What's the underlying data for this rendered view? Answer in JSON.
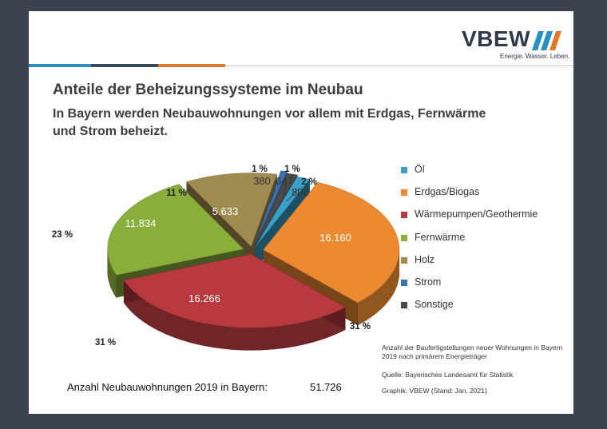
{
  "logo": {
    "text": "VBEW",
    "tagline": "Energie. Wasser. Leben."
  },
  "title": "Anteile der Beheizungssysteme im Neubau",
  "subtitle": "In Bayern werden Neubauwohnungen vor allem mit Erdgas, Fernwärme und Strom beheizt.",
  "colors": {
    "stripes": [
      "#2a8fc0",
      "#3a4a5a",
      "#e07a2a"
    ]
  },
  "chart_data": {
    "type": "pie",
    "style": "3d-exploded",
    "categories": [
      "Öl",
      "Erdgas/Biogas",
      "Wärmepumpen/Geothermie",
      "Fernwärme",
      "Holz",
      "Strom",
      "Sonstige"
    ],
    "values": [
      806,
      16160,
      16266,
      11834,
      5633,
      380,
      647
    ],
    "value_labels": [
      "806",
      "16.160",
      "16.266",
      "11.834",
      "5.633",
      "380",
      "647"
    ],
    "percent_labels": [
      "2 %",
      "31 %",
      "31 %",
      "23 %",
      "11 %",
      "1 %",
      "1 %"
    ],
    "colors": [
      "#3aa0c8",
      "#ec8a32",
      "#b83a3e",
      "#8aae3c",
      "#a08c50",
      "#3a6fb0",
      "#4a4a4a"
    ],
    "legend_position": "right"
  },
  "note": "Anzahl der Baufertigstellungen neuer Wohnungen in Bayern 2019 nach primärem Energieträger",
  "source": "Quelle: Bayerisches Landesamt für Statistik",
  "graphic": "Graphik: VBEW (Stand: Jan. 2021)",
  "total": {
    "label": "Anzahl Neubauwohnungen 2019 in Bayern:",
    "value": "51.726"
  }
}
